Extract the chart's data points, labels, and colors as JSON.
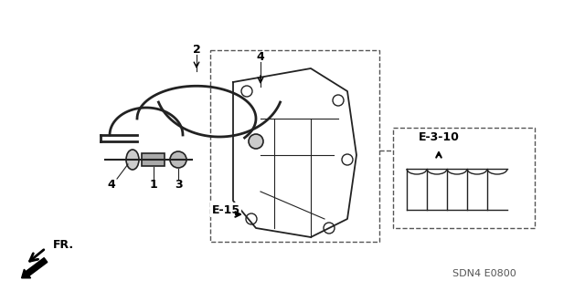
{
  "bg_color": "#ffffff",
  "fig_width": 6.4,
  "fig_height": 3.19,
  "dpi": 100,
  "title_code": "SDN4 E0800",
  "fr_label": "FR.",
  "label_1": "1",
  "label_2": "2",
  "label_3": "3",
  "label_4": "4",
  "ref_e15": "E-15",
  "ref_e310": "E-3-10",
  "line_color": "#222222",
  "dashed_box_color": "#555555",
  "text_color": "#000000"
}
